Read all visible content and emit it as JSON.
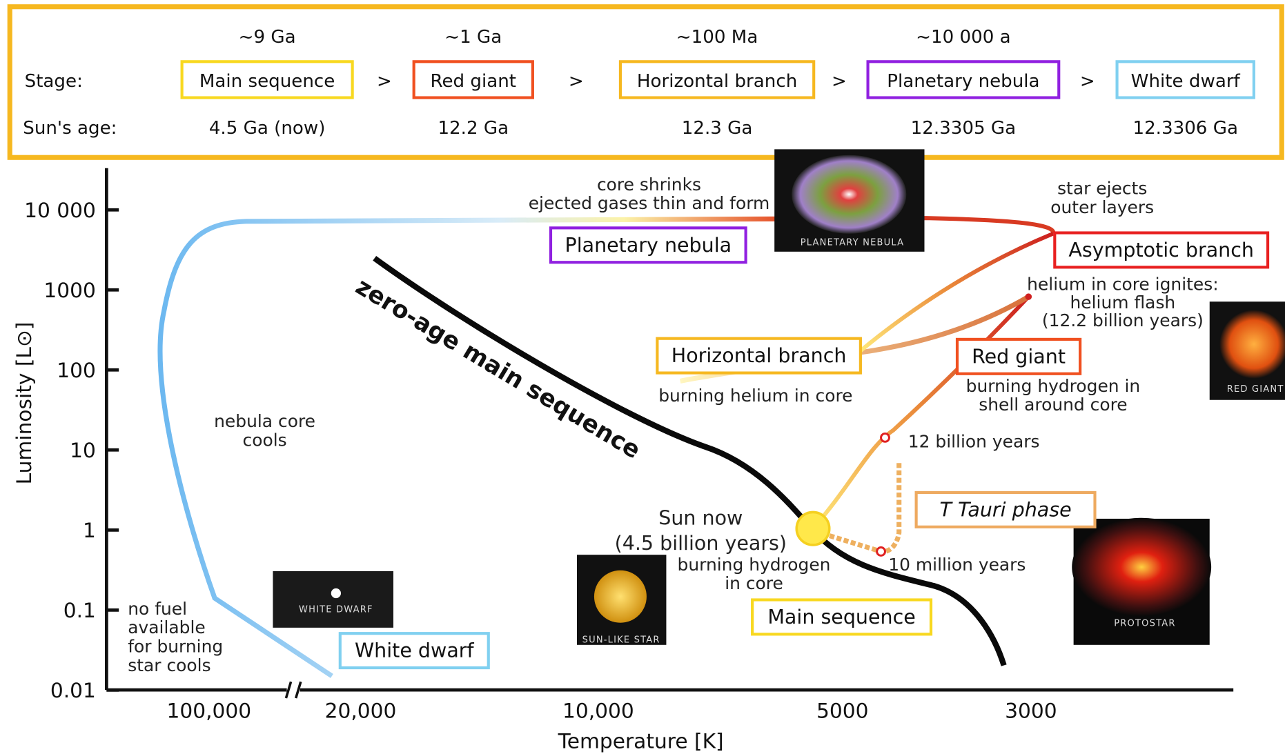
{
  "timeline": {
    "durations": [
      "~9 Ga",
      "~1 Ga",
      "~100 Ma",
      "~10 000 a"
    ],
    "stage_label": "Stage:",
    "stages": [
      "Main sequence",
      "Red giant",
      "Horizontal branch",
      "Planetary nebula",
      "White dwarf"
    ],
    "separator": ">",
    "age_label": "Sun's age:",
    "ages": [
      "4.5 Ga (now)",
      "12.2 Ga",
      "12.3 Ga",
      "12.3305 Ga",
      "12.3306 Ga"
    ]
  },
  "diagram": {
    "y_axis_title": "Luminosity [L⊙]",
    "y_ticks": [
      "10 000",
      "1000",
      "100",
      "10",
      "1",
      "0.1",
      "0.01"
    ],
    "x_axis_title": "Temperature [K]",
    "x_ticks": [
      "100,000",
      "20,000",
      "10,000",
      "5000",
      "3000"
    ],
    "zams_label": "zero-age main sequence",
    "boxes": {
      "planetary_nebula": "Planetary nebula",
      "asymptotic_branch": "Asymptotic branch",
      "horizontal_branch": "Horizontal branch",
      "red_giant": "Red giant",
      "t_tauri": "T Tauri phase",
      "main_sequence": "Main sequence",
      "white_dwarf": "White dwarf"
    },
    "notes": {
      "core_shrinks": [
        "core shrinks",
        "ejected gases thin and form"
      ],
      "star_ejects": [
        "star ejects",
        "outer layers"
      ],
      "helium_flash": [
        "helium in core ignites:",
        "helium flash",
        "(12.2 billion years)"
      ],
      "burning_helium": [
        "burning helium in core"
      ],
      "burning_shell": [
        "burning hydrogen in",
        "shell around core"
      ],
      "twelve_billion": [
        "12 billion years"
      ],
      "sun_now": [
        "Sun now",
        "(4.5 billion years)"
      ],
      "burning_core": [
        "burning hydrogen",
        "in core"
      ],
      "ten_million": [
        "10 million years"
      ],
      "nebula_cools": [
        "nebula core",
        "cools"
      ],
      "no_fuel": [
        "no fuel",
        "available",
        "for burning",
        "star cools"
      ]
    },
    "thumbnails": {
      "planetary_nebula": "PLANETARY NEBULA",
      "red_giant": "RED GIANT",
      "protostar": "PROTOSTAR",
      "sun_like": "SUN-LIKE STAR",
      "white_dwarf": "WHITE DWARF"
    }
  }
}
